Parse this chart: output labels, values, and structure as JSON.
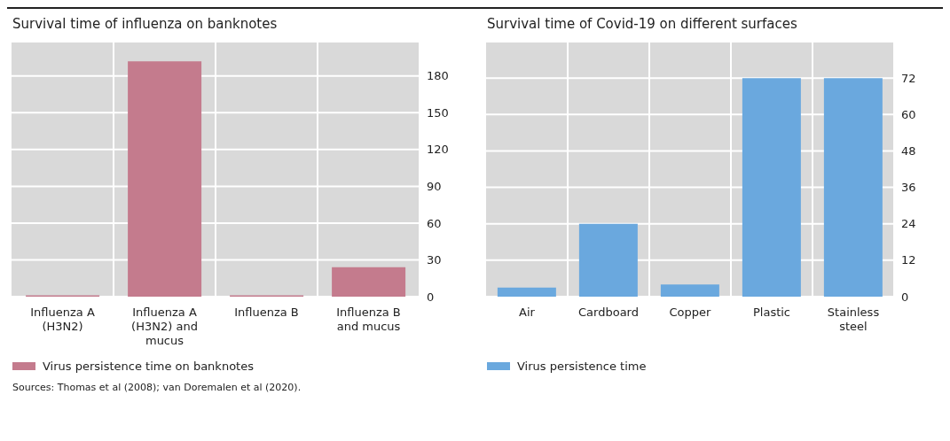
{
  "chart_data": [
    {
      "type": "bar",
      "title": "Survival time of influenza on banknotes",
      "categories": [
        "Influenza A (H3N2)",
        "Influenza A (H3N2) and mucus",
        "Influenza B",
        "Influenza B and mucus"
      ],
      "series": [
        {
          "name": "Virus persistence time on banknotes",
          "color": "#c47b8d",
          "values": [
            1,
            192,
            1,
            24
          ]
        }
      ],
      "ylim": [
        0,
        208
      ],
      "yticks": [
        0,
        30,
        60,
        90,
        120,
        150,
        180
      ],
      "grid": true,
      "legend": "bottom",
      "annotations": [
        "Sources: Thomas et al (2008); van Doremalen et al (2020)."
      ]
    },
    {
      "type": "bar",
      "title": "Survival time of Covid-19 on different surfaces",
      "categories": [
        "Air",
        "Cardboard",
        "Copper",
        "Plastic",
        "Stainless steel"
      ],
      "series": [
        {
          "name": "Virus persistence time",
          "color": "#6aa8de",
          "values": [
            3,
            24,
            4,
            72,
            72
          ]
        }
      ],
      "ylim": [
        0,
        84
      ],
      "yticks": [
        0,
        12,
        24,
        36,
        48,
        60,
        72
      ],
      "grid": true,
      "legend": "bottom"
    }
  ]
}
